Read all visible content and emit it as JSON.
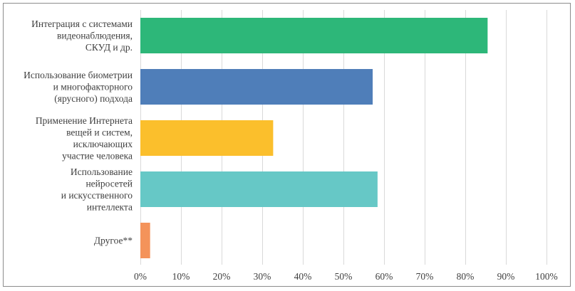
{
  "chart_data": {
    "type": "bar",
    "orientation": "horizontal",
    "categories": [
      [
        "Интеграция с системами",
        "видеонаблюдения,",
        "СКУД и др."
      ],
      [
        "Использование биометрии",
        "и многофакторного",
        "(ярусного) подхода"
      ],
      [
        "Применение Интернета",
        "вещей и систем,",
        "исключающих",
        "участие человека"
      ],
      [
        "Использование",
        "нейросетей",
        "и искусственного",
        "интеллекта"
      ],
      [
        "Другое**"
      ]
    ],
    "values": [
      85.5,
      57.2,
      32.7,
      58.4,
      2.4
    ],
    "colors": [
      "#2db779",
      "#4f7eb9",
      "#fbbf2c",
      "#66c8c6",
      "#f4935a"
    ],
    "xlim": [
      0,
      100
    ],
    "xticks": [
      "0%",
      "10%",
      "20%",
      "30%",
      "40%",
      "50%",
      "60%",
      "70%",
      "80%",
      "90%",
      "100%"
    ],
    "grid": true,
    "legend": "none",
    "title": "",
    "xlabel": "",
    "ylabel": ""
  }
}
